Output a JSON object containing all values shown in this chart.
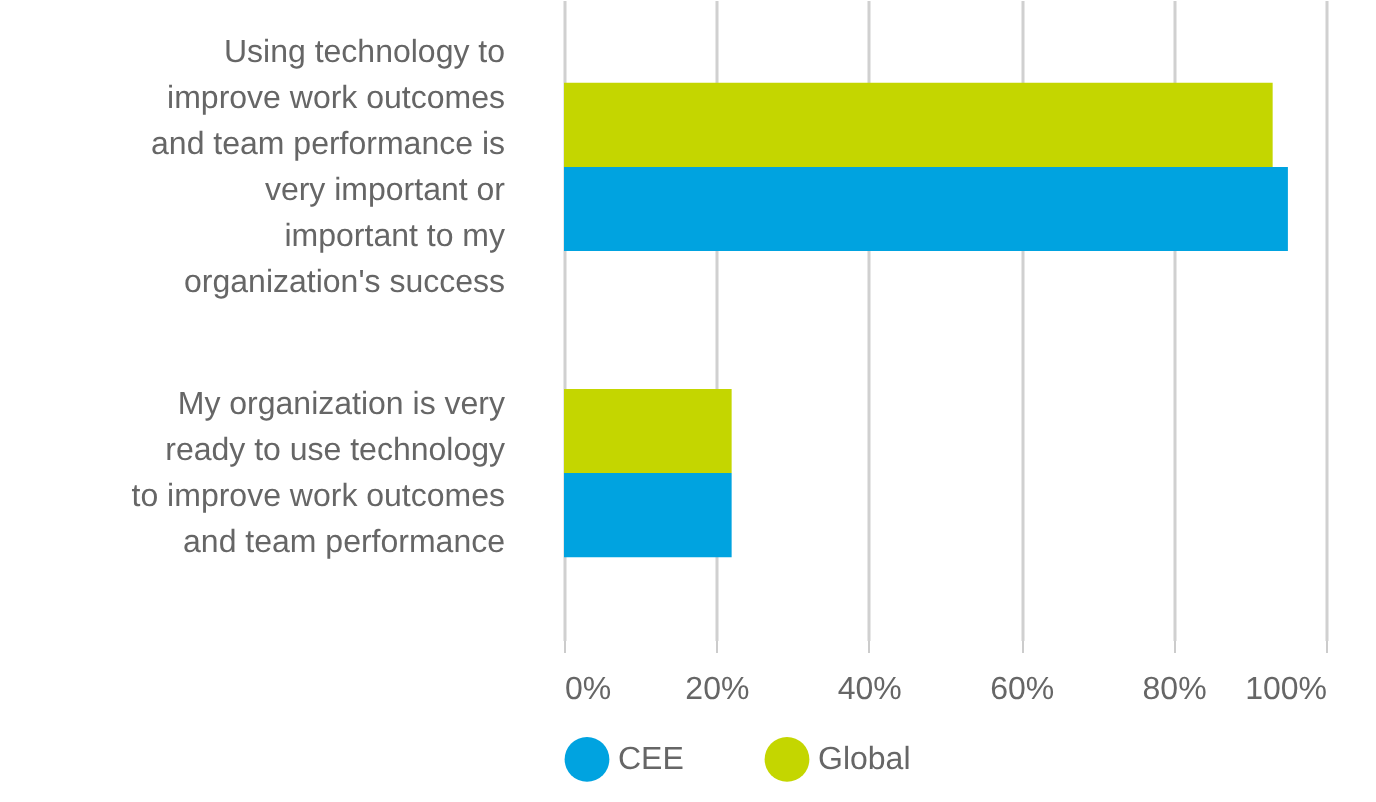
{
  "chart_data": {
    "type": "bar",
    "orientation": "horizontal",
    "categories": [
      "Using technology to improve work outcomes and team performance is very important or important to my organization's success",
      "My organization is very ready to use technology to improve work outcomes and team performance"
    ],
    "series": [
      {
        "name": "CEE",
        "color": "#00a3e0",
        "values": [
          95,
          22
        ]
      },
      {
        "name": "Global",
        "color": "#c4d600",
        "values": [
          93,
          22
        ]
      }
    ],
    "xlim": [
      0,
      100
    ],
    "xticks": [
      {
        "value": 0,
        "label": "0%"
      },
      {
        "value": 20,
        "label": "20%"
      },
      {
        "value": 40,
        "label": "40%"
      },
      {
        "value": 60,
        "label": "60%"
      },
      {
        "value": 80,
        "label": "80%"
      },
      {
        "value": 100,
        "label": "100%"
      }
    ],
    "grid": "x",
    "legend": "bottom"
  }
}
